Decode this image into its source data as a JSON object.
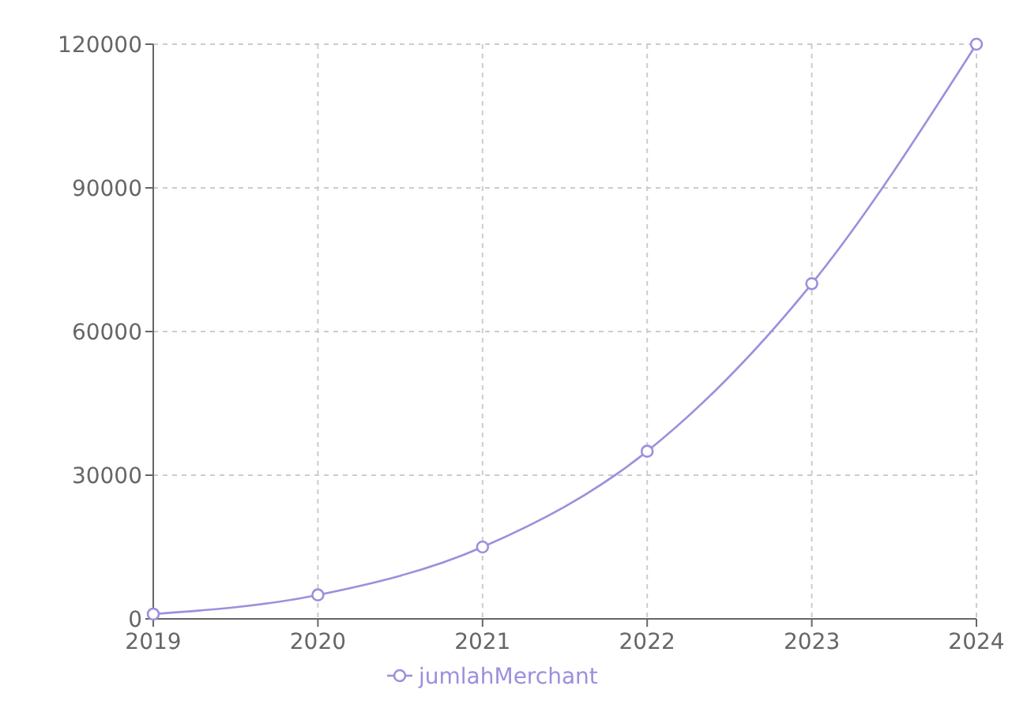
{
  "chart_data": {
    "type": "line",
    "categories": [
      "2019",
      "2020",
      "2021",
      "2022",
      "2023",
      "2024"
    ],
    "series": [
      {
        "name": "jumlahMerchant",
        "color": "#9e8fdc",
        "values": [
          1000,
          5000,
          15000,
          35000,
          70000,
          120000
        ]
      }
    ],
    "ylim": [
      0,
      120000
    ],
    "yticks": [
      0,
      30000,
      60000,
      90000,
      120000
    ],
    "grid": true,
    "legend": "bottom",
    "marker": "circle"
  }
}
